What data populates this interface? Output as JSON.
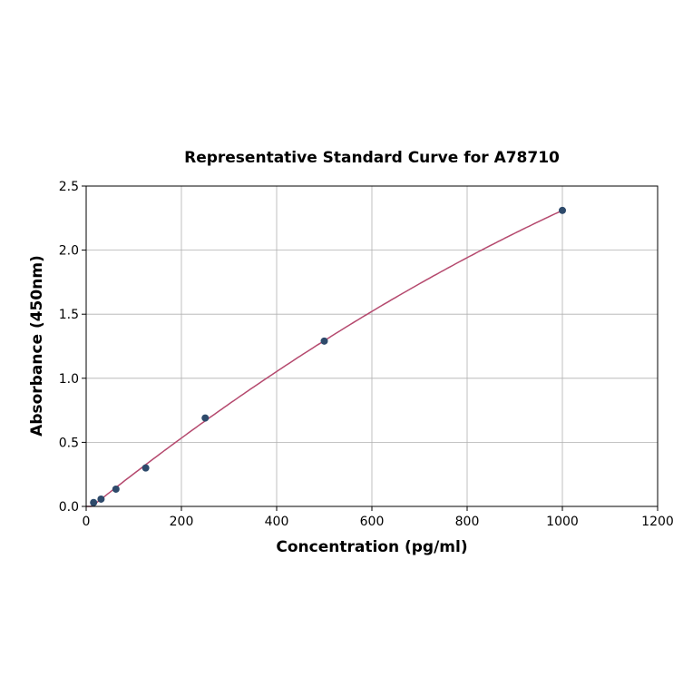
{
  "chart_data": {
    "type": "scatter",
    "title": "Representative Standard Curve for A78710",
    "xlabel": "Concentration (pg/ml)",
    "ylabel": "Absorbance (450nm)",
    "xlim": [
      0,
      1200
    ],
    "ylim": [
      0,
      2.5
    ],
    "xticks": [
      0,
      200,
      400,
      600,
      800,
      1000,
      1200
    ],
    "yticks": [
      0.0,
      0.5,
      1.0,
      1.5,
      2.0,
      2.5
    ],
    "xtick_labels": [
      "0",
      "200",
      "400",
      "600",
      "800",
      "1000",
      "1200"
    ],
    "ytick_labels": [
      "0.0",
      "0.5",
      "1.0",
      "1.5",
      "2.0",
      "2.5"
    ],
    "grid": true,
    "points": {
      "x": [
        15.6,
        31.25,
        62.5,
        125,
        250,
        500,
        1000
      ],
      "y": [
        0.03,
        0.057,
        0.135,
        0.3,
        0.69,
        1.29,
        2.31
      ]
    },
    "fit_curve": true,
    "colors": {
      "points": "#2e4a6b",
      "curve": "#b5496e",
      "grid": "#b0b0b0"
    }
  }
}
